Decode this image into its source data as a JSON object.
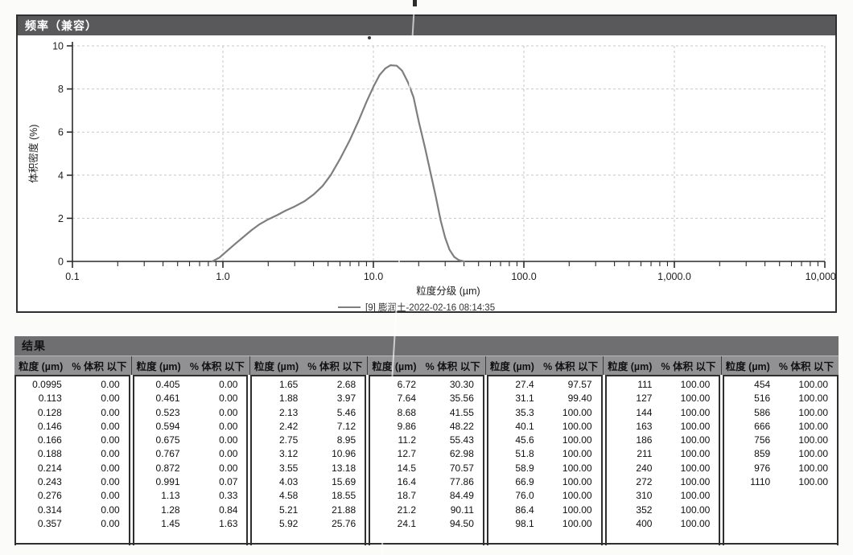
{
  "chart": {
    "title": "频率（兼容）",
    "header_bg": "#59595c",
    "header_text_color": "#ffffff"
  },
  "chart_data": {
    "type": "line",
    "title": "频率（兼容）",
    "xlabel": "粒度分级 (µm)",
    "ylabel": "体积密度 (%)",
    "x_scale": "log",
    "xlim": [
      0.1,
      10000
    ],
    "ylim": [
      0,
      10
    ],
    "grid": true,
    "legend_position": "bottom-center",
    "x_tick_values": [
      0.1,
      1,
      10,
      100,
      1000,
      10000
    ],
    "x_tick_labels": [
      "0.1",
      "1.0",
      "10.0",
      "100.0",
      "1,000.0",
      "10,000.0"
    ],
    "y_ticks": [
      0,
      2,
      4,
      6,
      8,
      10
    ],
    "series": [
      {
        "name": "[9] 膨润土-2022-02-16 08:14:35",
        "color": "#7e7e81",
        "points": [
          [
            0.85,
            0
          ],
          [
            0.95,
            0.18
          ],
          [
            1.05,
            0.45
          ],
          [
            1.2,
            0.8
          ],
          [
            1.35,
            1.1
          ],
          [
            1.55,
            1.45
          ],
          [
            1.75,
            1.72
          ],
          [
            2.0,
            1.95
          ],
          [
            2.3,
            2.15
          ],
          [
            2.6,
            2.35
          ],
          [
            3.0,
            2.55
          ],
          [
            3.5,
            2.8
          ],
          [
            4.0,
            3.1
          ],
          [
            4.6,
            3.5
          ],
          [
            5.2,
            4.0
          ],
          [
            6.0,
            4.75
          ],
          [
            7.0,
            5.65
          ],
          [
            8.0,
            6.55
          ],
          [
            9.0,
            7.4
          ],
          [
            10.0,
            8.1
          ],
          [
            11.0,
            8.65
          ],
          [
            12.0,
            8.95
          ],
          [
            13.0,
            9.1
          ],
          [
            14.3,
            9.08
          ],
          [
            15.5,
            8.85
          ],
          [
            17.0,
            8.3
          ],
          [
            18.5,
            7.6
          ],
          [
            20.0,
            6.5
          ],
          [
            22.0,
            5.3
          ],
          [
            24.0,
            4.1
          ],
          [
            26.0,
            3.0
          ],
          [
            28.0,
            1.9
          ],
          [
            30.0,
            1.1
          ],
          [
            32.0,
            0.55
          ],
          [
            34.5,
            0.2
          ],
          [
            37.0,
            0.06
          ],
          [
            40.0,
            0
          ]
        ]
      }
    ]
  },
  "table": {
    "title": "结果",
    "col_size_label": "粒度 (µm)",
    "col_pct_label": "% 体积 以下",
    "groups": [
      [
        [
          "0.0995",
          "0.00"
        ],
        [
          "0.113",
          "0.00"
        ],
        [
          "0.128",
          "0.00"
        ],
        [
          "0.146",
          "0.00"
        ],
        [
          "0.166",
          "0.00"
        ],
        [
          "0.188",
          "0.00"
        ],
        [
          "0.214",
          "0.00"
        ],
        [
          "0.243",
          "0.00"
        ],
        [
          "0.276",
          "0.00"
        ],
        [
          "0.314",
          "0.00"
        ],
        [
          "0.357",
          "0.00"
        ]
      ],
      [
        [
          "0.405",
          "0.00"
        ],
        [
          "0.461",
          "0.00"
        ],
        [
          "0.523",
          "0.00"
        ],
        [
          "0.594",
          "0.00"
        ],
        [
          "0.675",
          "0.00"
        ],
        [
          "0.767",
          "0.00"
        ],
        [
          "0.872",
          "0.00"
        ],
        [
          "0.991",
          "0.07"
        ],
        [
          "1.13",
          "0.33"
        ],
        [
          "1.28",
          "0.84"
        ],
        [
          "1.45",
          "1.63"
        ]
      ],
      [
        [
          "1.65",
          "2.68"
        ],
        [
          "1.88",
          "3.97"
        ],
        [
          "2.13",
          "5.46"
        ],
        [
          "2.42",
          "7.12"
        ],
        [
          "2.75",
          "8.95"
        ],
        [
          "3.12",
          "10.96"
        ],
        [
          "3.55",
          "13.18"
        ],
        [
          "4.03",
          "15.69"
        ],
        [
          "4.58",
          "18.55"
        ],
        [
          "5.21",
          "21.88"
        ],
        [
          "5.92",
          "25.76"
        ]
      ],
      [
        [
          "6.72",
          "30.30"
        ],
        [
          "7.64",
          "35.56"
        ],
        [
          "8.68",
          "41.55"
        ],
        [
          "9.86",
          "48.22"
        ],
        [
          "11.2",
          "55.43"
        ],
        [
          "12.7",
          "62.98"
        ],
        [
          "14.5",
          "70.57"
        ],
        [
          "16.4",
          "77.86"
        ],
        [
          "18.7",
          "84.49"
        ],
        [
          "21.2",
          "90.11"
        ],
        [
          "24.1",
          "94.50"
        ]
      ],
      [
        [
          "27.4",
          "97.57"
        ],
        [
          "31.1",
          "99.40"
        ],
        [
          "35.3",
          "100.00"
        ],
        [
          "40.1",
          "100.00"
        ],
        [
          "45.6",
          "100.00"
        ],
        [
          "51.8",
          "100.00"
        ],
        [
          "58.9",
          "100.00"
        ],
        [
          "66.9",
          "100.00"
        ],
        [
          "76.0",
          "100.00"
        ],
        [
          "86.4",
          "100.00"
        ],
        [
          "98.1",
          "100.00"
        ]
      ],
      [
        [
          "111",
          "100.00"
        ],
        [
          "127",
          "100.00"
        ],
        [
          "144",
          "100.00"
        ],
        [
          "163",
          "100.00"
        ],
        [
          "186",
          "100.00"
        ],
        [
          "211",
          "100.00"
        ],
        [
          "240",
          "100.00"
        ],
        [
          "272",
          "100.00"
        ],
        [
          "310",
          "100.00"
        ],
        [
          "352",
          "100.00"
        ],
        [
          "400",
          "100.00"
        ]
      ],
      [
        [
          "454",
          "100.00"
        ],
        [
          "516",
          "100.00"
        ],
        [
          "586",
          "100.00"
        ],
        [
          "666",
          "100.00"
        ],
        [
          "756",
          "100.00"
        ],
        [
          "859",
          "100.00"
        ],
        [
          "976",
          "100.00"
        ],
        [
          "1110",
          "100.00"
        ]
      ]
    ]
  },
  "colors": {
    "chart_header_bg": "#59595c",
    "table_title_bg": "#6f6f72",
    "table_header_bg": "#919194",
    "curve": "#7e7e81",
    "grid": "#c7c7c7",
    "border": "#2f2f31"
  }
}
